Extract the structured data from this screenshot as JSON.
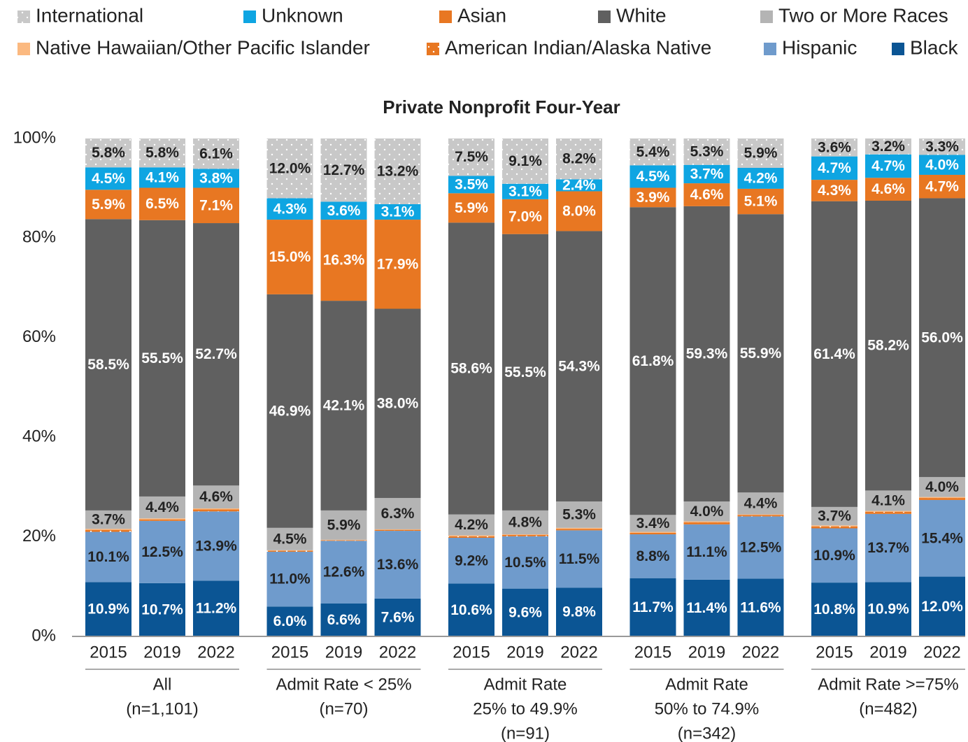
{
  "chart_data": {
    "type": "stacked_bar",
    "title": "Private Nonprofit Four-Year",
    "categories": [
      "2015",
      "2019",
      "2022",
      "2015",
      "2019",
      "2022",
      "2015",
      "2019",
      "2022",
      "2015",
      "2019",
      "2022",
      "2015",
      "2019",
      "2022"
    ],
    "groups": [
      {
        "lines": [
          "All",
          "(n=1,101)"
        ]
      },
      {
        "lines": [
          "Admit Rate < 25%",
          "(n=70)"
        ]
      },
      {
        "lines": [
          "Admit Rate",
          "25% to 49.9%",
          "(n=91)"
        ]
      },
      {
        "lines": [
          "Admit Rate",
          "50% to 74.9%",
          "(n=342)"
        ]
      },
      {
        "lines": [
          "Admit Rate >=75%",
          "(n=482)"
        ]
      }
    ],
    "ylim": [
      0,
      100
    ],
    "yticks": [
      {
        "value": 0,
        "label": "0%"
      },
      {
        "value": 20,
        "label": "20%"
      },
      {
        "value": 40,
        "label": "40%"
      },
      {
        "value": 60,
        "label": "60%"
      },
      {
        "value": 80,
        "label": "80%"
      },
      {
        "value": 100,
        "label": "100%"
      }
    ],
    "series": [
      {
        "name": "Black",
        "color": "#0b5594",
        "values": [
          10.9,
          10.7,
          11.2,
          6.0,
          6.6,
          7.6,
          10.6,
          9.6,
          9.8,
          11.7,
          11.4,
          11.6,
          10.8,
          10.9,
          12.0
        ],
        "value_labels": [
          "10.9%",
          "10.7%",
          "11.2%",
          "6.0%",
          "6.6%",
          "7.6%",
          "10.6%",
          "9.6%",
          "9.8%",
          "11.7%",
          "11.4%",
          "11.6%",
          "10.8%",
          "10.9%",
          "12.0%"
        ]
      },
      {
        "name": "Hispanic",
        "color": "#6f9bcc",
        "values": [
          10.1,
          12.5,
          13.9,
          11.0,
          12.6,
          13.6,
          9.2,
          10.5,
          11.5,
          8.8,
          11.1,
          12.5,
          10.9,
          13.7,
          15.4
        ],
        "value_labels": [
          "10.1%",
          "12.5%",
          "13.9%",
          "11.0%",
          "12.6%",
          "13.6%",
          "9.2%",
          "10.5%",
          "11.5%",
          "8.8%",
          "11.1%",
          "12.5%",
          "10.9%",
          "13.7%",
          "15.4%"
        ]
      },
      {
        "name": "American Indian/Alaska Native",
        "color": "#e87722",
        "pattern": "dots",
        "values": [
          0.4,
          0.3,
          0.4,
          0.2,
          0.1,
          0.2,
          0.3,
          0.3,
          0.3,
          0.3,
          0.4,
          0.3,
          0.4,
          0.4,
          0.4
        ]
      },
      {
        "name": "Native Hawaiian/Other Pacific Islander",
        "color": "#fbb980",
        "values": [
          0.2,
          0.2,
          0.2,
          0.1,
          0.1,
          0.1,
          0.2,
          0.1,
          0.2,
          0.2,
          0.2,
          0.1,
          0.2,
          0.2,
          0.2
        ]
      },
      {
        "name": "Two or More Races",
        "color": "#b4b4b4",
        "values": [
          3.7,
          4.4,
          4.6,
          4.5,
          5.9,
          6.3,
          4.2,
          4.8,
          5.3,
          3.4,
          4.0,
          4.4,
          3.7,
          4.1,
          4.0
        ],
        "value_labels": [
          "3.7%",
          "4.4%",
          "4.6%",
          "4.5%",
          "5.9%",
          "6.3%",
          "4.2%",
          "4.8%",
          "5.3%",
          "3.4%",
          "4.0%",
          "4.4%",
          "3.7%",
          "4.1%",
          "4.0%"
        ]
      },
      {
        "name": "White",
        "color": "#606060",
        "values": [
          58.5,
          55.5,
          52.7,
          46.9,
          42.1,
          38.0,
          58.6,
          55.5,
          54.3,
          61.8,
          59.3,
          55.9,
          61.4,
          58.2,
          56.0
        ],
        "value_labels": [
          "58.5%",
          "55.5%",
          "52.7%",
          "46.9%",
          "42.1%",
          "38.0%",
          "58.6%",
          "55.5%",
          "54.3%",
          "61.8%",
          "59.3%",
          "55.9%",
          "61.4%",
          "58.2%",
          "56.0%"
        ]
      },
      {
        "name": "Asian",
        "color": "#e87722",
        "values": [
          5.9,
          6.5,
          7.1,
          15.0,
          16.3,
          17.9,
          5.9,
          7.0,
          8.0,
          3.9,
          4.6,
          5.1,
          4.3,
          4.6,
          4.7
        ],
        "value_labels": [
          "5.9%",
          "6.5%",
          "7.1%",
          "15.0%",
          "16.3%",
          "17.9%",
          "5.9%",
          "7.0%",
          "8.0%",
          "3.9%",
          "4.6%",
          "5.1%",
          "4.3%",
          "4.6%",
          "4.7%"
        ]
      },
      {
        "name": "Unknown",
        "color": "#0ea5e2",
        "values": [
          4.5,
          4.1,
          3.8,
          4.3,
          3.6,
          3.1,
          3.5,
          3.1,
          2.4,
          4.5,
          3.7,
          4.2,
          4.7,
          4.7,
          4.0
        ],
        "value_labels": [
          "4.5%",
          "4.1%",
          "3.8%",
          "4.3%",
          "3.6%",
          "3.1%",
          "3.5%",
          "3.1%",
          "2.4%",
          "4.5%",
          "3.7%",
          "4.2%",
          "4.7%",
          "4.7%",
          "4.0%"
        ]
      },
      {
        "name": "International",
        "color": "#c8c8c8",
        "pattern": "dots",
        "values": [
          5.8,
          5.8,
          6.1,
          12.0,
          12.7,
          13.2,
          7.5,
          9.1,
          8.2,
          5.4,
          5.3,
          5.9,
          3.6,
          3.2,
          3.3
        ],
        "value_labels": [
          "5.8%",
          "5.8%",
          "6.1%",
          "12.0%",
          "12.7%",
          "13.2%",
          "7.5%",
          "9.1%",
          "8.2%",
          "5.4%",
          "5.3%",
          "5.9%",
          "3.6%",
          "3.2%",
          "3.3%"
        ]
      }
    ]
  }
}
